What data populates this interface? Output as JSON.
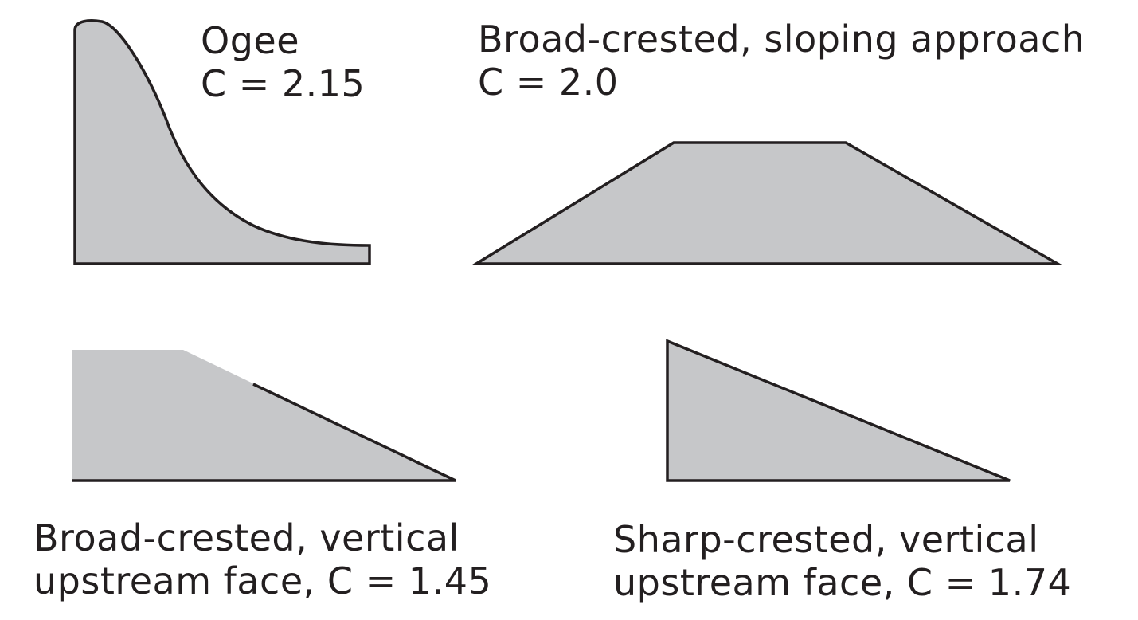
{
  "weirs": {
    "ogee": {
      "name": "Ogee",
      "coefficient": "C = 2.15"
    },
    "broad_sloping": {
      "name": "Broad-crested, sloping approach",
      "coefficient": "C = 2.0"
    },
    "broad_vertical": {
      "line1": "Broad-crested, vertical",
      "line2": "upstream face, C = 1.45"
    },
    "sharp_vertical": {
      "line1": "Sharp-crested, vertical",
      "line2": "upstream face, C = 1.74"
    }
  },
  "colors": {
    "fill": "#c6c7c9",
    "stroke": "#231f20"
  }
}
